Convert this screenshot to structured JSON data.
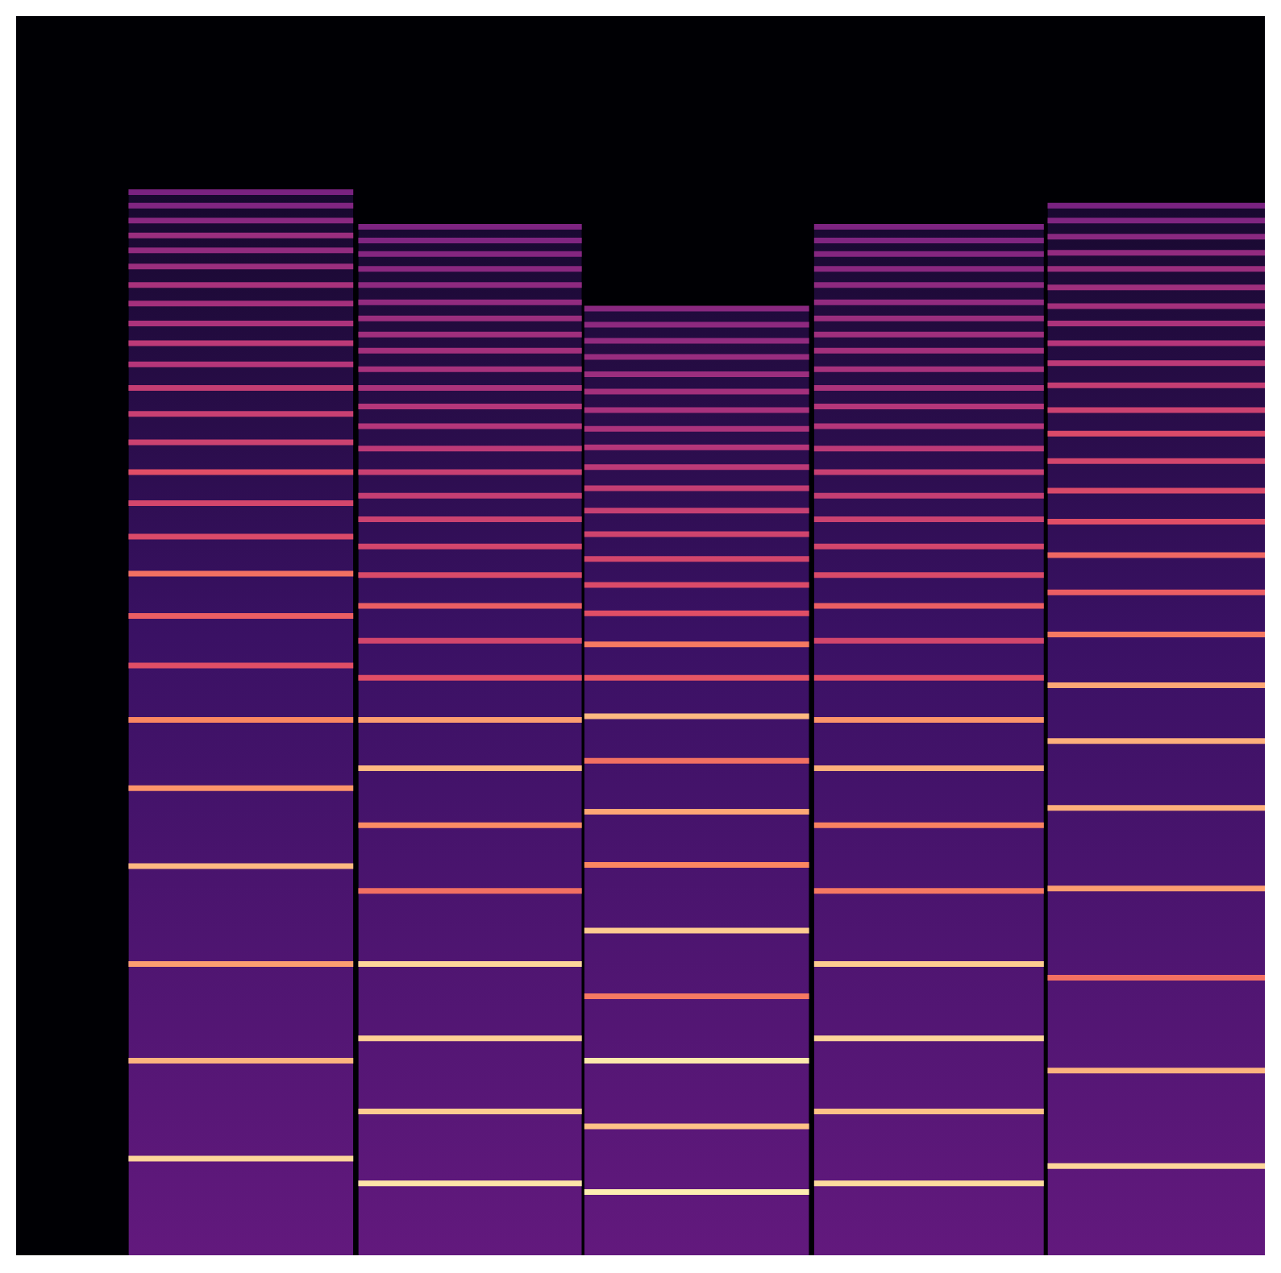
{
  "chart_data": {
    "type": "spectrogram",
    "color": "magma",
    "grid": false,
    "tick_labels": false,
    "xlim": [
      0,
      100
    ],
    "ylim": [
      0,
      100
    ],
    "zlim": [
      0,
      100
    ],
    "notes": [
      {
        "start": 9.0,
        "end": 27.0,
        "harmonics": [
          7.8,
          15.7,
          23.5,
          31.4,
          37.7,
          43.2,
          47.6,
          51.6,
          55.0,
          58.0,
          60.7,
          63.2,
          65.6,
          67.9,
          70.0,
          71.9,
          73.6,
          75.2,
          76.8,
          78.3,
          79.8,
          81.1,
          82.3,
          83.5,
          84.7,
          85.8
        ],
        "levels": [
          92,
          85,
          80,
          86,
          78,
          75,
          62,
          66,
          70,
          60,
          58,
          62,
          56,
          55,
          54,
          50,
          52,
          48,
          46,
          47,
          44,
          42,
          44,
          40,
          38,
          36
        ]
      },
      {
        "start": 27.4,
        "end": 45.3,
        "harmonics": [
          5.8,
          11.6,
          17.5,
          23.5,
          29.4,
          34.7,
          39.3,
          43.2,
          46.6,
          49.6,
          52.4,
          54.9,
          57.2,
          59.4,
          61.3,
          63.2,
          65.1,
          66.9,
          68.5,
          70.0,
          71.5,
          73.0,
          74.3,
          75.6,
          76.9,
          78.3,
          79.6,
          80.8,
          81.9,
          83.0
        ],
        "levels": [
          95,
          90,
          91,
          92,
          70,
          76,
          86,
          80,
          62,
          58,
          66,
          60,
          58,
          56,
          54,
          55,
          52,
          50,
          50,
          48,
          47,
          46,
          45,
          44,
          42,
          41,
          40,
          39,
          38,
          37
        ]
      },
      {
        "start": 45.5,
        "end": 63.5,
        "harmonics": [
          5.1,
          10.4,
          15.7,
          20.9,
          26.2,
          31.5,
          35.8,
          39.9,
          43.5,
          46.6,
          49.3,
          51.8,
          54.1,
          56.2,
          58.2,
          60.1,
          61.9,
          63.6,
          65.2,
          66.7,
          68.2,
          69.7,
          71.1,
          72.5,
          73.8,
          75.1,
          76.4
        ],
        "levels": [
          97,
          88,
          96,
          72,
          90,
          75,
          82,
          70,
          86,
          64,
          72,
          62,
          60,
          58,
          57,
          55,
          54,
          52,
          50,
          48,
          47,
          46,
          44,
          43,
          42,
          41,
          40
        ]
      },
      {
        "start": 63.9,
        "end": 82.3,
        "harmonics": [
          5.8,
          11.6,
          17.5,
          23.5,
          29.4,
          34.7,
          39.3,
          43.2,
          46.6,
          49.6,
          52.4,
          54.9,
          57.2,
          59.4,
          61.3,
          63.2,
          65.1,
          66.9,
          68.5,
          70.0,
          71.5,
          73.0,
          74.3,
          75.6,
          76.9,
          78.3,
          79.6,
          80.8,
          81.9,
          83.0
        ],
        "levels": [
          93,
          88,
          92,
          90,
          72,
          74,
          84,
          78,
          62,
          58,
          66,
          60,
          58,
          56,
          54,
          55,
          52,
          50,
          50,
          48,
          47,
          46,
          45,
          44,
          42,
          41,
          40,
          39,
          38,
          37
        ]
      },
      {
        "start": 82.6,
        "end": 100,
        "harmonics": [
          7.2,
          14.9,
          22.4,
          29.6,
          36.1,
          41.5,
          46.0,
          50.1,
          53.5,
          56.5,
          59.2,
          61.7,
          64.1,
          66.3,
          68.2,
          70.2,
          72.0,
          73.6,
          75.2,
          76.6,
          78.1,
          79.6,
          80.9,
          82.2,
          83.5,
          84.7
        ],
        "levels": [
          92,
          85,
          70,
          80,
          84,
          84,
          82,
          72,
          66,
          68,
          62,
          60,
          58,
          60,
          56,
          54,
          52,
          50,
          48,
          46,
          45,
          44,
          42,
          40,
          38,
          36
        ]
      }
    ]
  }
}
